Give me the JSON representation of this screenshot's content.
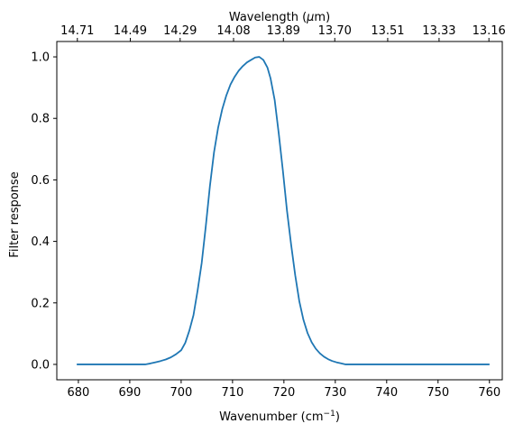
{
  "chart_data": {
    "type": "line",
    "x_label_main": "Wavenumber (cm",
    "x_label_sup": "−1",
    "x_label_close": ")",
    "top_label_main": "Wavelength (",
    "top_label_mu": "μ",
    "top_label_close": "m)",
    "ylabel": "Filter response",
    "xlim": [
      675.8,
      762.5
    ],
    "ylim": [
      -0.05,
      1.05
    ],
    "x_ticks": [
      680,
      690,
      700,
      710,
      720,
      730,
      740,
      750,
      760
    ],
    "y_ticks": [
      0.0,
      0.2,
      0.4,
      0.6,
      0.8,
      1.0
    ],
    "y_tick_labels": [
      "0.0",
      "0.2",
      "0.4",
      "0.6",
      "0.8",
      "1.0"
    ],
    "top_ticks_wavenumber": [
      679.8,
      690.1,
      699.8,
      710.2,
      719.9,
      729.9,
      740.2,
      750.2,
      759.9
    ],
    "top_tick_labels": [
      "14.71",
      "14.49",
      "14.29",
      "14.08",
      "13.89",
      "13.70",
      "13.51",
      "13.33",
      "13.16"
    ],
    "grid": false,
    "series": [
      {
        "color": "#1f77b4",
        "x": [
          679.8,
          686,
          690,
          693,
          694,
          695,
          696,
          697,
          698,
          699,
          700,
          700.8,
          701.6,
          702.4,
          703.2,
          704,
          704.8,
          705.6,
          706.4,
          707.2,
          708,
          708.8,
          709.6,
          710.4,
          711.2,
          712,
          712.8,
          713.6,
          714.4,
          715.2,
          716,
          716.8,
          717.4,
          718.2,
          719,
          719.8,
          720.6,
          721.4,
          722.2,
          723,
          723.8,
          724.6,
          725.4,
          726.2,
          727,
          727.8,
          728.6,
          729.4,
          730.2,
          731,
          732,
          733,
          734,
          735,
          740,
          750,
          759.9
        ],
        "y": [
          0.0,
          0.0,
          0.0,
          0.0,
          0.003,
          0.007,
          0.011,
          0.016,
          0.023,
          0.033,
          0.046,
          0.07,
          0.11,
          0.16,
          0.24,
          0.33,
          0.45,
          0.58,
          0.69,
          0.77,
          0.83,
          0.875,
          0.91,
          0.935,
          0.955,
          0.97,
          0.982,
          0.99,
          0.998,
          1.0,
          0.99,
          0.965,
          0.93,
          0.86,
          0.75,
          0.63,
          0.5,
          0.39,
          0.29,
          0.205,
          0.145,
          0.102,
          0.072,
          0.051,
          0.036,
          0.025,
          0.017,
          0.011,
          0.007,
          0.004,
          0.0,
          0.0,
          0.0,
          0.0,
          0.0,
          0.0,
          0.0
        ]
      }
    ]
  }
}
